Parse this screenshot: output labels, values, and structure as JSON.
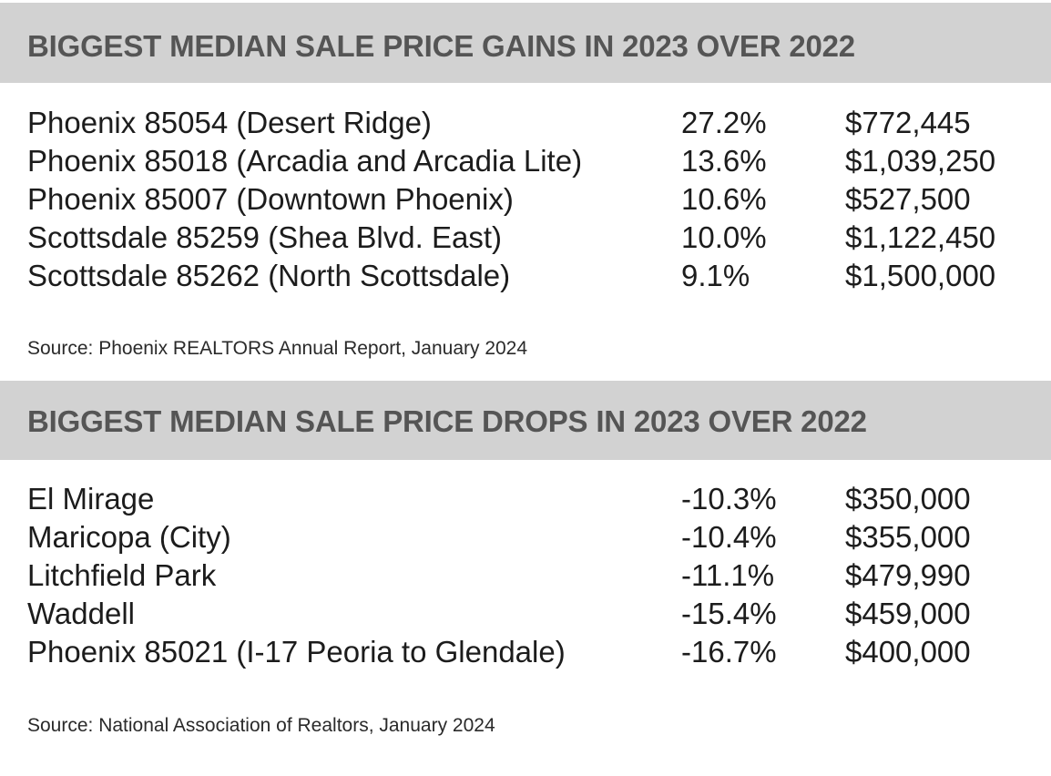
{
  "gains": {
    "title": "BIGGEST MEDIAN SALE PRICE GAINS IN 2023 OVER 2022",
    "rows": [
      {
        "place": "Phoenix 85054 (Desert Ridge)",
        "pct": "27.2%",
        "price": "$772,445"
      },
      {
        "place": "Phoenix 85018 (Arcadia and Arcadia Lite)",
        "pct": "13.6%",
        "price": "$1,039,250"
      },
      {
        "place": "Phoenix 85007 (Downtown Phoenix)",
        "pct": "10.6%",
        "price": "$527,500"
      },
      {
        "place": "Scottsdale 85259 (Shea Blvd. East)",
        "pct": "10.0%",
        "price": "$1,122,450"
      },
      {
        "place": "Scottsdale 85262 (North Scottsdale)",
        "pct": "9.1%",
        "price": "$1,500,000"
      }
    ],
    "source": "Source: Phoenix REALTORS Annual Report, January 2024"
  },
  "drops": {
    "title": "BIGGEST MEDIAN SALE PRICE DROPS IN 2023 OVER 2022",
    "rows": [
      {
        "place": "El Mirage",
        "pct": "-10.3%",
        "price": "$350,000"
      },
      {
        "place": "Maricopa (City)",
        "pct": "-10.4%",
        "price": "$355,000"
      },
      {
        "place": "Litchfield Park",
        "pct": "-11.1%",
        "price": "$479,990"
      },
      {
        "place": "Waddell",
        "pct": "-15.4%",
        "price": "$459,000"
      },
      {
        "place": "Phoenix 85021 (I-17 Peoria to Glendale)",
        "pct": "-16.7%",
        "price": "$400,000"
      }
    ],
    "source": "Source: National Association of Realtors, January 2024"
  },
  "colors": {
    "header_bg": "#d2d2d2",
    "header_text": "#555555",
    "body_text": "#1c1c1c"
  }
}
